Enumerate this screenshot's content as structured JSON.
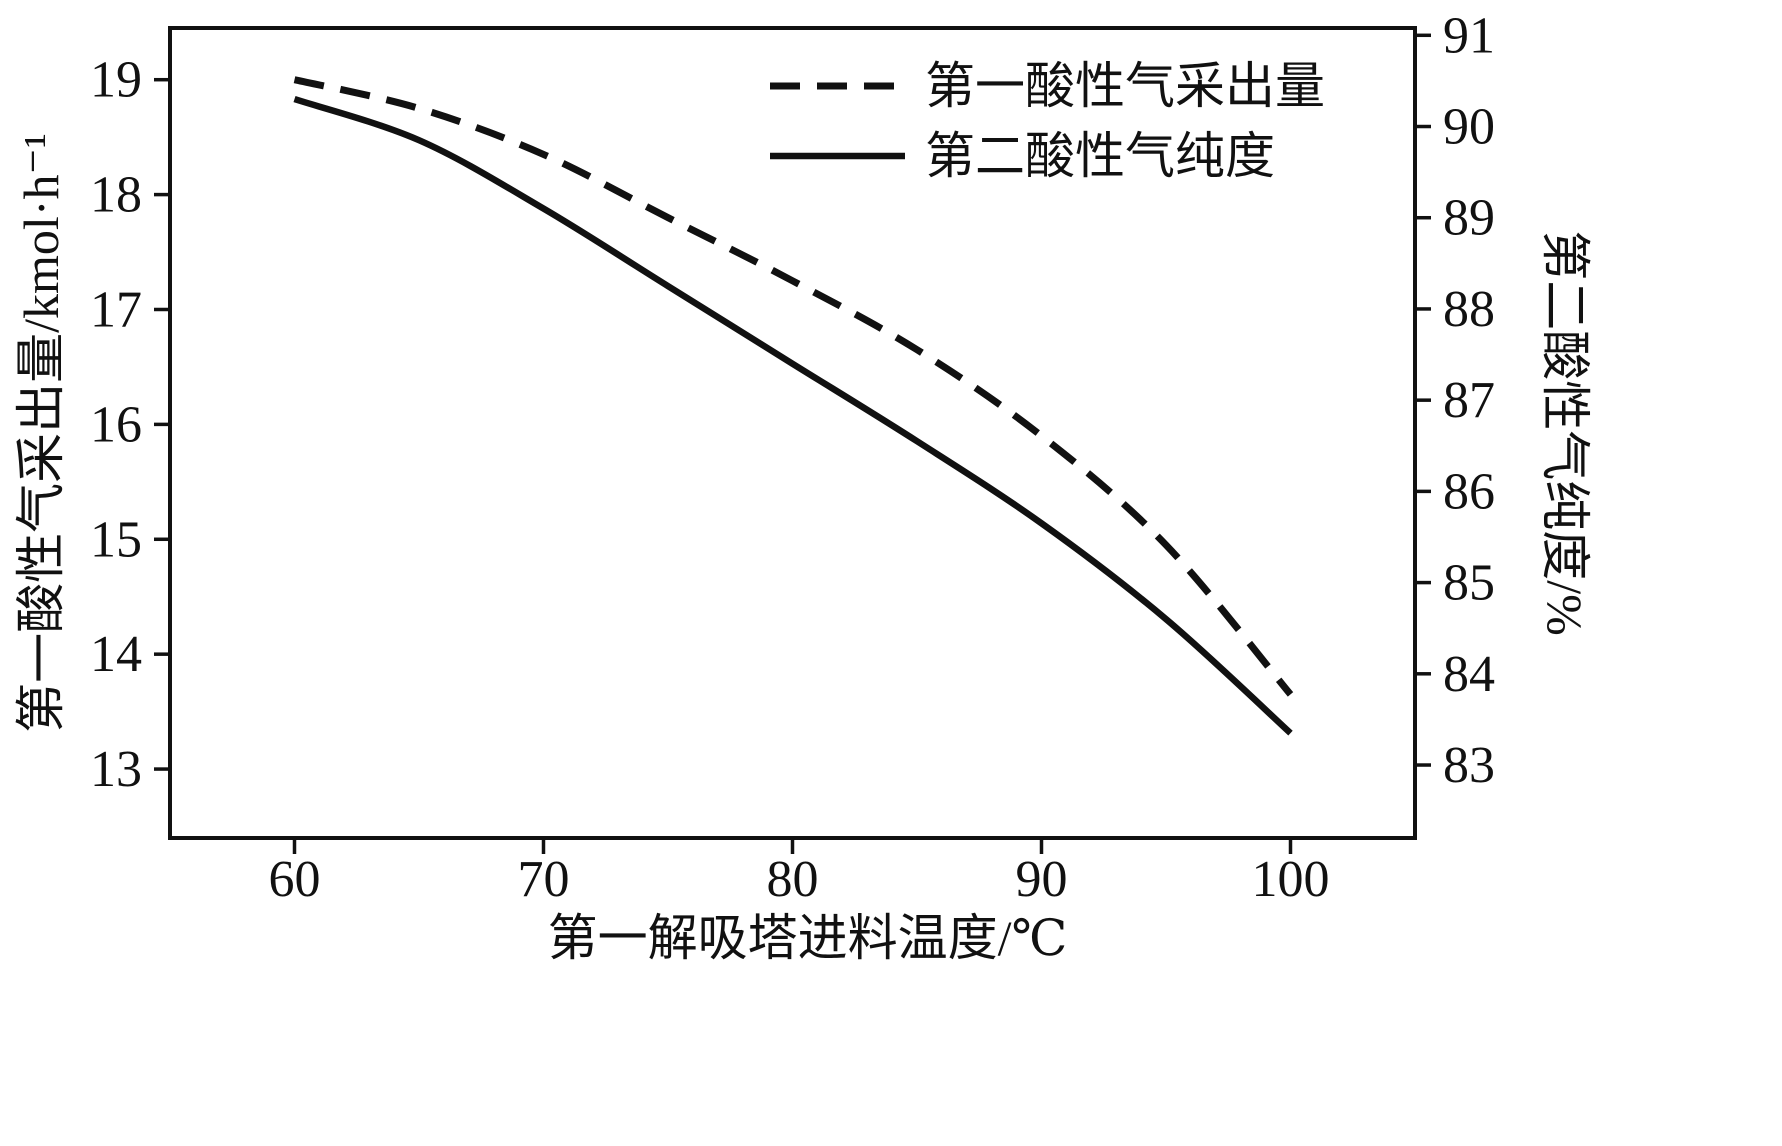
{
  "figure": {
    "background": "#ffffff",
    "line_color": "#111111"
  },
  "chart_data": {
    "type": "line",
    "x": [
      60,
      65,
      70,
      75,
      80,
      85,
      90,
      95,
      100
    ],
    "xlabel": "第一解吸塔进料温度/℃",
    "xlim": [
      55,
      105
    ],
    "xticks": [
      60,
      70,
      80,
      90,
      100
    ],
    "left_axis": {
      "label": "第一酸性气采出量/kmol·h⁻¹",
      "lim": [
        12.4,
        19.45
      ],
      "ticks": [
        13,
        14,
        15,
        16,
        17,
        18,
        19
      ]
    },
    "right_axis": {
      "label": "第二酸性气纯度/%",
      "lim": [
        82.2,
        91.08
      ],
      "ticks": [
        83,
        84,
        85,
        86,
        87,
        88,
        89,
        90,
        91
      ]
    },
    "series": [
      {
        "name": "第一酸性气采出量",
        "axis": "left",
        "style": "dashed",
        "values": [
          19.0,
          18.75,
          18.35,
          17.8,
          17.25,
          16.65,
          15.9,
          14.95,
          13.65
        ]
      },
      {
        "name": "第二酸性气纯度",
        "axis": "right",
        "style": "solid",
        "values": [
          90.3,
          89.85,
          89.1,
          88.25,
          87.4,
          86.55,
          85.65,
          84.6,
          83.35
        ]
      }
    ],
    "legend": {
      "position": "top-right-inside",
      "entries": [
        "第一酸性气采出量",
        "第二酸性气纯度"
      ]
    },
    "grid": false
  }
}
